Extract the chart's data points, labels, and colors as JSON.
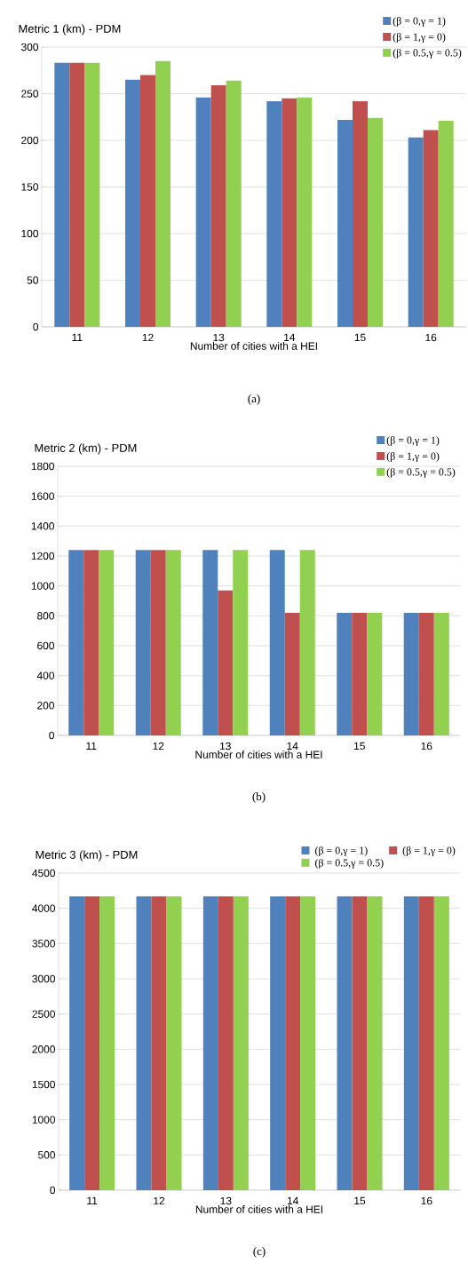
{
  "chart_data": [
    {
      "type": "bar",
      "title": "Metric 1 (km) - PDM",
      "xlabel": "Number of cities with a HEI",
      "categories": [
        "11",
        "12",
        "13",
        "14",
        "15",
        "16"
      ],
      "series": [
        {
          "name": "(β = 0,γ = 1)",
          "color": "#4f81bd",
          "values": [
            283,
            265,
            246,
            242,
            222,
            203
          ]
        },
        {
          "name": "(β = 1,γ = 0)",
          "color": "#c0504d",
          "values": [
            283,
            270,
            259,
            245,
            242,
            211
          ]
        },
        {
          "name": "(β = 0.5,γ = 0.5)",
          "color": "#92d050",
          "values": [
            283,
            285,
            264,
            246,
            224,
            221
          ]
        }
      ],
      "ylim": [
        0,
        300
      ],
      "yticks": [
        0,
        50,
        100,
        150,
        200,
        250,
        300
      ],
      "grid": "y",
      "legend": "top right",
      "annotations": [
        "(a)"
      ]
    },
    {
      "type": "bar",
      "title": "Metric 2 (km) - PDM",
      "xlabel": "Number of cities with a HEI",
      "categories": [
        "11",
        "12",
        "13",
        "14",
        "15",
        "16"
      ],
      "series": [
        {
          "name": "(β = 0,γ = 1)",
          "color": "#4f81bd",
          "values": [
            1240,
            1240,
            1240,
            1240,
            820,
            820
          ]
        },
        {
          "name": "(β = 1,γ = 0)",
          "color": "#c0504d",
          "values": [
            1240,
            1240,
            970,
            820,
            820,
            820
          ]
        },
        {
          "name": "(β = 0.5,γ = 0.5)",
          "color": "#92d050",
          "values": [
            1240,
            1240,
            1240,
            1240,
            820,
            820
          ]
        }
      ],
      "ylim": [
        0,
        1800
      ],
      "yticks": [
        0,
        200,
        400,
        600,
        800,
        1000,
        1200,
        1400,
        1600,
        1800
      ],
      "grid": "y",
      "legend": "top right",
      "annotations": [
        "(b)"
      ]
    },
    {
      "type": "bar",
      "title": "Metric 3 (km) - PDM",
      "xlabel": "Number of cities with a HEI",
      "categories": [
        "11",
        "12",
        "13",
        "14",
        "15",
        "16"
      ],
      "series": [
        {
          "name": "(β = 0,γ = 1)",
          "color": "#4f81bd",
          "values": [
            4170,
            4170,
            4170,
            4170,
            4170,
            4170
          ]
        },
        {
          "name": "(β = 1,γ = 0)",
          "color": "#c0504d",
          "values": [
            4170,
            4170,
            4170,
            4170,
            4170,
            4170
          ]
        },
        {
          "name": "(β = 0.5,γ = 0.5)",
          "color": "#92d050",
          "values": [
            4170,
            4170,
            4170,
            4170,
            4170,
            4170
          ]
        }
      ],
      "ylim": [
        0,
        4500
      ],
      "yticks": [
        0,
        500,
        1000,
        1500,
        2000,
        2500,
        3000,
        3500,
        4000,
        4500
      ],
      "grid": "y",
      "legend": "top",
      "annotations": [
        "(c)"
      ]
    }
  ]
}
